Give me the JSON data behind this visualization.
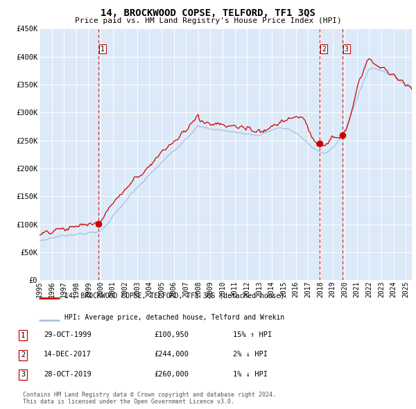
{
  "title": "14, BROCKWOOD COPSE, TELFORD, TF1 3QS",
  "subtitle": "Price paid vs. HM Land Registry's House Price Index (HPI)",
  "legend_label_red": "14, BROCKWOOD COPSE, TELFORD, TF1 3QS (detached house)",
  "legend_label_blue": "HPI: Average price, detached house, Telford and Wrekin",
  "transactions": [
    {
      "num": 1,
      "date": "29-OCT-1999",
      "price": 100950,
      "hpi_diff": "15% ↑ HPI",
      "x": 1999.83
    },
    {
      "num": 2,
      "date": "14-DEC-2017",
      "price": 244000,
      "hpi_diff": "2% ↓ HPI",
      "x": 2017.96
    },
    {
      "num": 3,
      "date": "28-OCT-2019",
      "price": 260000,
      "hpi_diff": "1% ↓ HPI",
      "x": 2019.83
    }
  ],
  "footer": "Contains HM Land Registry data © Crown copyright and database right 2024.\nThis data is licensed under the Open Government Licence v3.0.",
  "ylim": [
    0,
    450000
  ],
  "xlim": [
    1995.0,
    2025.5
  ],
  "yticks": [
    0,
    50000,
    100000,
    150000,
    200000,
    250000,
    300000,
    350000,
    400000,
    450000
  ],
  "ytick_labels": [
    "£0",
    "£50K",
    "£100K",
    "£150K",
    "£200K",
    "£250K",
    "£300K",
    "£350K",
    "£400K",
    "£450K"
  ],
  "background_color": "#dce9f8",
  "red_color": "#cc0000",
  "blue_color": "#aac4e0",
  "grid_color": "#ffffff",
  "dashed_line_color": "#cc0000",
  "xtick_years": [
    1995,
    1996,
    1997,
    1998,
    1999,
    2000,
    2001,
    2002,
    2003,
    2004,
    2005,
    2006,
    2007,
    2008,
    2009,
    2010,
    2011,
    2012,
    2013,
    2014,
    2015,
    2016,
    2017,
    2018,
    2019,
    2020,
    2021,
    2022,
    2023,
    2024,
    2025
  ],
  "xtick_labels": [
    "1995",
    "1996",
    "1997",
    "1998",
    "1999",
    "2000",
    "2001",
    "2002",
    "2003",
    "2004",
    "2005",
    "2006",
    "2007",
    "2008",
    "2009",
    "2010",
    "2011",
    "2012",
    "2013",
    "2014",
    "2015",
    "2016",
    "2017",
    "2018",
    "2019",
    "2020",
    "2021",
    "2022",
    "2023",
    "2024",
    "2025"
  ]
}
